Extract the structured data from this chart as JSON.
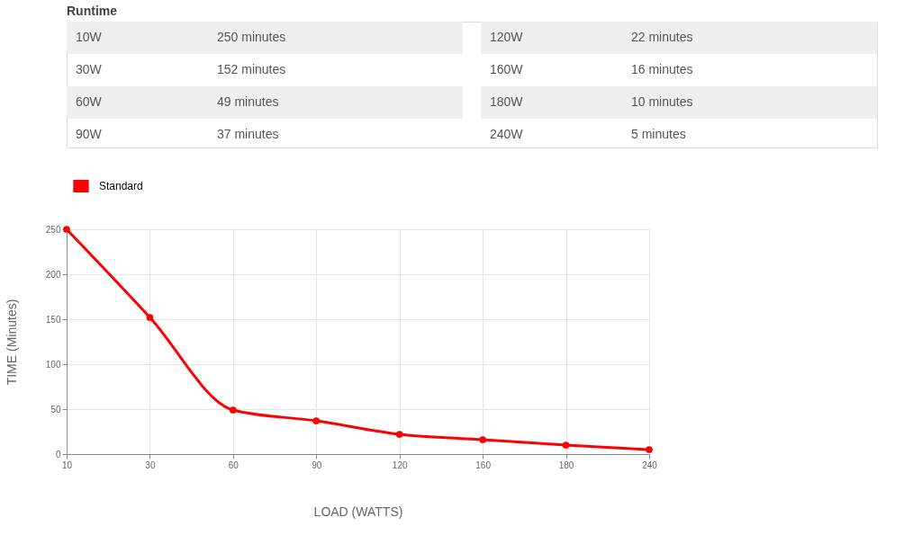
{
  "chart_data": {
    "type": "line",
    "title": "Runtime",
    "categories": [
      "10",
      "30",
      "60",
      "90",
      "120",
      "160",
      "180",
      "240"
    ],
    "series": [
      {
        "name": "Standard",
        "color": "#ff0000",
        "values": [
          250,
          152,
          49,
          37,
          22,
          16,
          10,
          5
        ]
      }
    ],
    "value_labels": [
      "250 minutes",
      "152 minutes",
      "49 minutes",
      "37 minutes",
      "22 minutes",
      "16 minutes",
      "10 minutes",
      "5 minutes"
    ],
    "annotations": [
      "10W",
      "30W",
      "60W",
      "90W",
      "120W",
      "160W",
      "180W",
      "240W"
    ],
    "xlabel": "LOAD (WATTS)",
    "ylabel": "TIME (Minutes)",
    "ylim": [
      0,
      250
    ],
    "yticks": [
      0,
      50,
      100,
      150,
      200,
      250
    ],
    "grid": true,
    "legend": "top",
    "marker": "circle",
    "line_style": "solid"
  }
}
